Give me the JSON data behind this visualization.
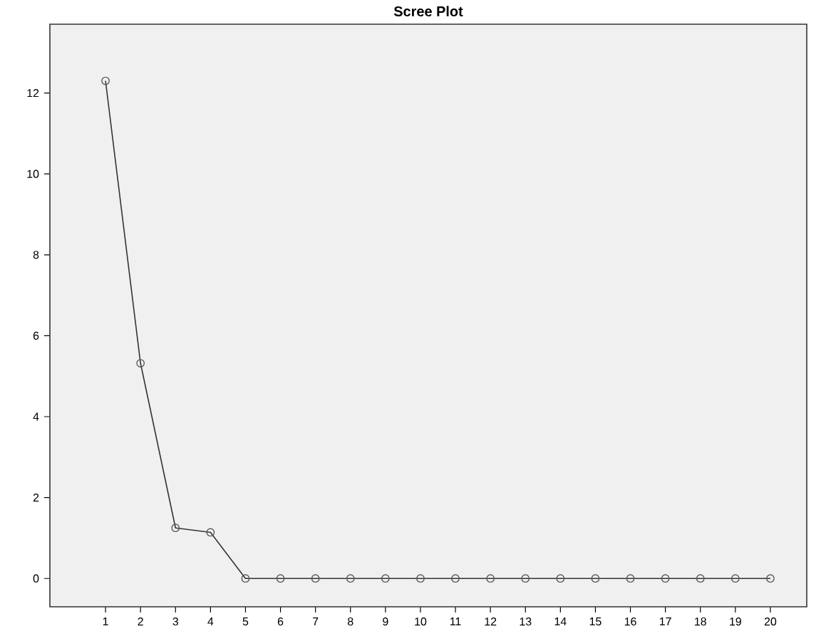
{
  "chart_data": {
    "type": "line",
    "title": "Scree Plot",
    "categories": [
      "1",
      "2",
      "3",
      "4",
      "5",
      "6",
      "7",
      "8",
      "9",
      "10",
      "11",
      "12",
      "13",
      "14",
      "15",
      "16",
      "17",
      "18",
      "19",
      "20"
    ],
    "series": [
      {
        "color": "#333333",
        "values": [
          12.3,
          5.32,
          1.25,
          1.14,
          0,
          0,
          0,
          0,
          0,
          0,
          0,
          0,
          0,
          0,
          0,
          0,
          0,
          0,
          0,
          0
        ]
      }
    ],
    "ylim": [
      -0.7,
      13.7
    ],
    "yticks": [
      0,
      2,
      4,
      6,
      8,
      10,
      12
    ],
    "grid": false,
    "marker": "circle",
    "line_style": "solid"
  }
}
